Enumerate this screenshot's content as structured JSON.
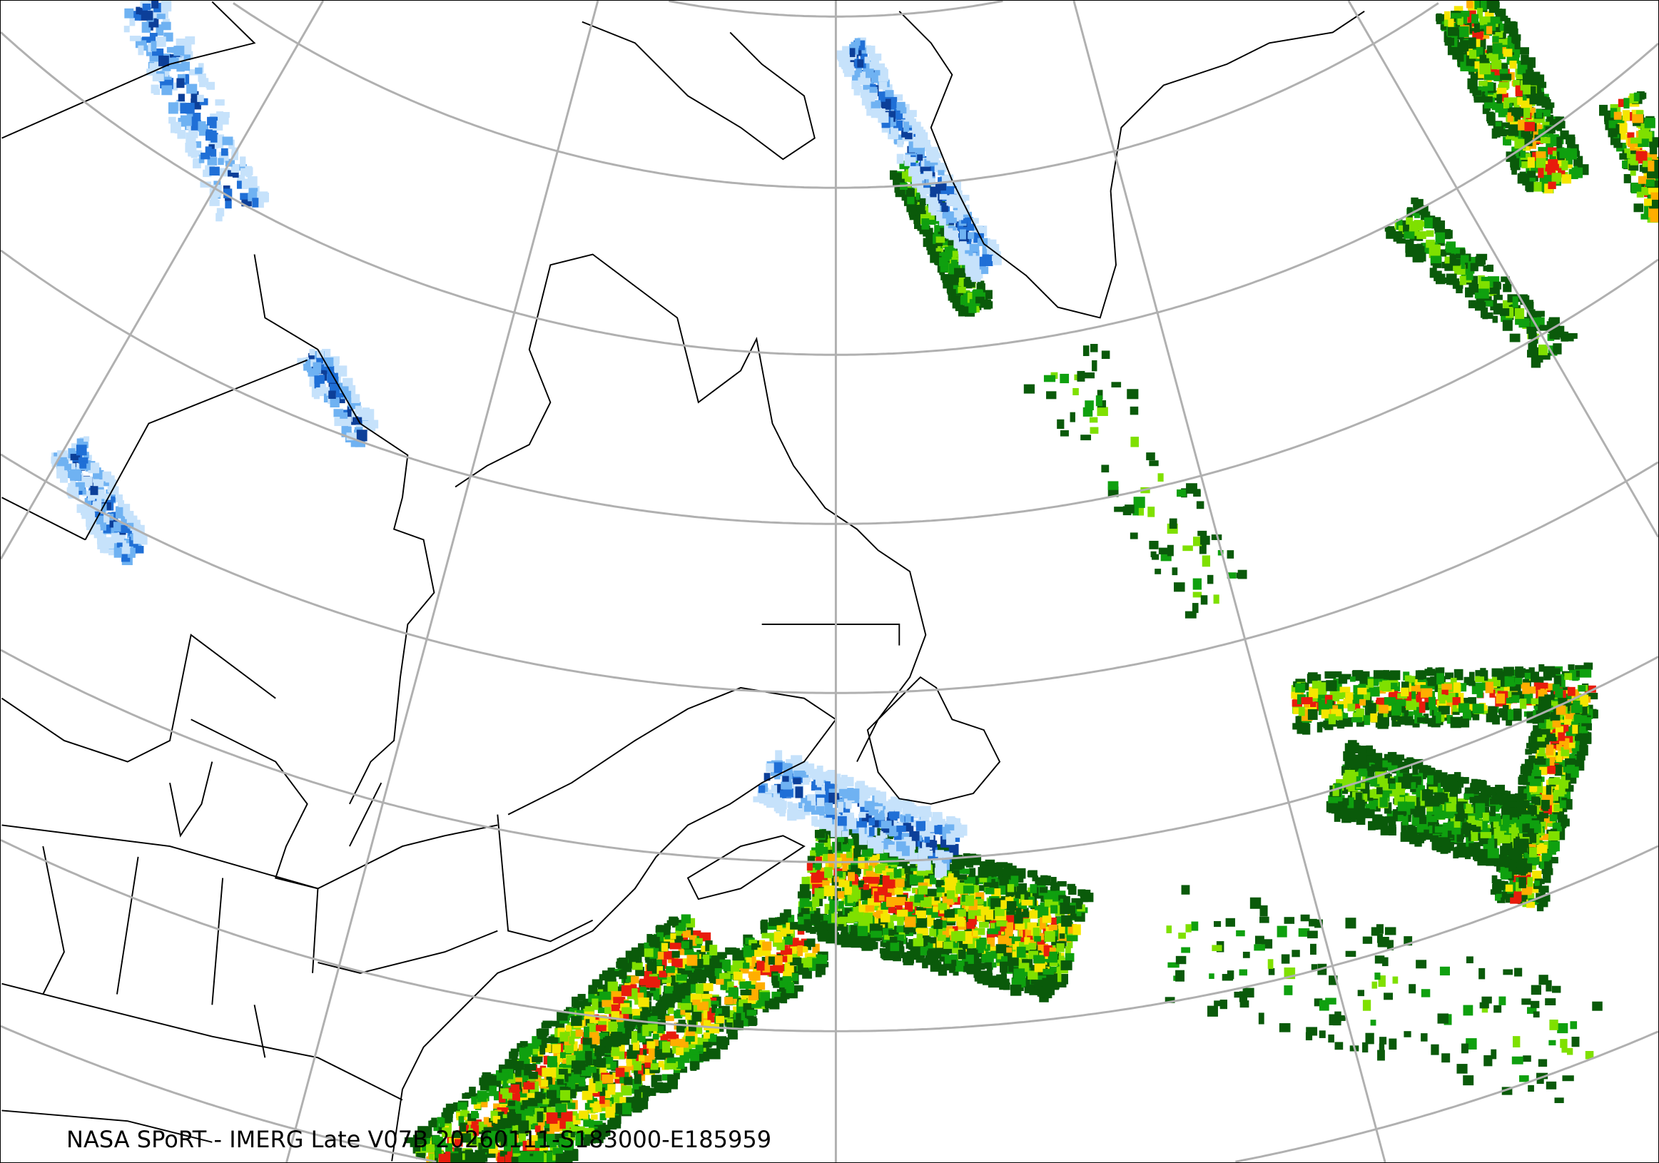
{
  "map": {
    "caption": "NASA SPoRT - IMERG Late V07B 20260111-S183000-E185959",
    "projection": "lambert-conformal-conic",
    "graticule_color": "#b0b0b0",
    "coastline_color": "#000000",
    "precip_colors": {
      "snow_light": "#c6e2fb",
      "snow_mid": "#6fb2f2",
      "snow_heavy": "#1f6fd6",
      "snow_dark": "#0c3f99",
      "mix": "#ff4fbf",
      "rain_dark": "#0a5a0a",
      "rain_green": "#0fa00f",
      "rain_light": "#7fe000",
      "rain_yellow": "#f5e600",
      "rain_orange": "#ffae00",
      "rain_red": "#e81c0c"
    }
  }
}
